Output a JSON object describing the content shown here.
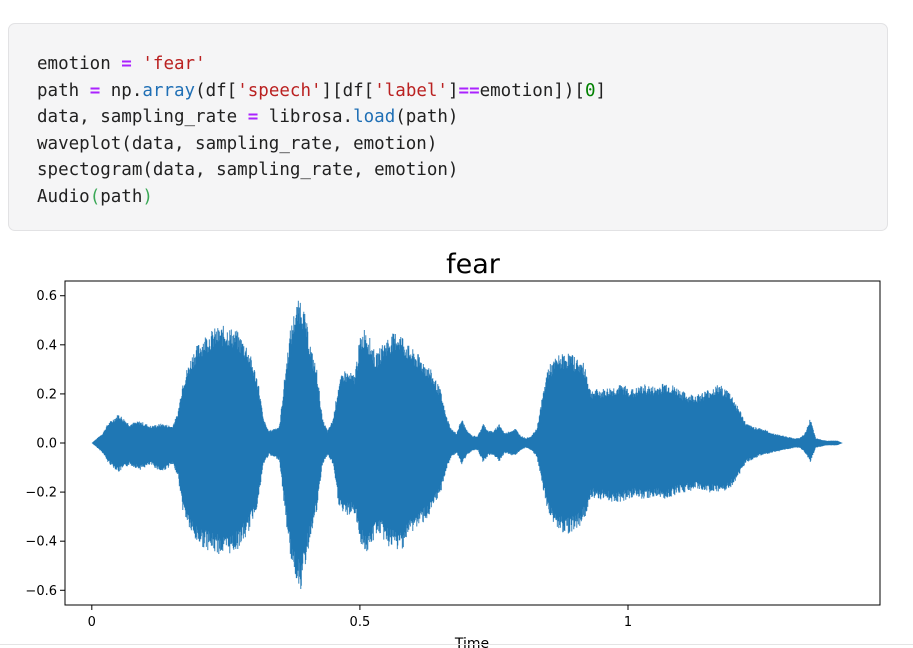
{
  "code_cell": {
    "lines": [
      [
        {
          "t": "emotion ",
          "c": ""
        },
        {
          "t": "=",
          "c": "tok-op"
        },
        {
          "t": " ",
          "c": ""
        },
        {
          "t": "'fear'",
          "c": "tok-str"
        }
      ],
      [
        {
          "t": "path ",
          "c": ""
        },
        {
          "t": "=",
          "c": "tok-op"
        },
        {
          "t": " np.",
          "c": ""
        },
        {
          "t": "array",
          "c": "tok-fn"
        },
        {
          "t": "(df[",
          "c": ""
        },
        {
          "t": "'speech'",
          "c": "tok-str"
        },
        {
          "t": "][df[",
          "c": ""
        },
        {
          "t": "'label'",
          "c": "tok-str"
        },
        {
          "t": "]",
          "c": ""
        },
        {
          "t": "==",
          "c": "tok-op"
        },
        {
          "t": "emotion])[",
          "c": ""
        },
        {
          "t": "0",
          "c": "tok-num"
        },
        {
          "t": "]",
          "c": ""
        }
      ],
      [
        {
          "t": "data, sampling_rate ",
          "c": ""
        },
        {
          "t": "=",
          "c": "tok-op"
        },
        {
          "t": " librosa.",
          "c": ""
        },
        {
          "t": "load",
          "c": "tok-fn"
        },
        {
          "t": "(path)",
          "c": ""
        }
      ],
      [
        {
          "t": "waveplot(data, sampling_rate, emotion)",
          "c": ""
        }
      ],
      [
        {
          "t": "spectogram(data, sampling_rate, emotion)",
          "c": ""
        }
      ],
      [
        {
          "t": "Audio",
          "c": ""
        },
        {
          "t": "(",
          "c": "tok-par"
        },
        {
          "t": "path",
          "c": ""
        },
        {
          "t": ")",
          "c": "tok-par"
        }
      ]
    ]
  },
  "chart_data": {
    "type": "line",
    "title": "fear",
    "xlabel": "Time",
    "ylabel": "",
    "xlim": [
      -0.05,
      1.47
    ],
    "ylim": [
      -0.66,
      0.66
    ],
    "x_ticks": [
      0,
      0.5,
      1
    ],
    "x_tick_labels": [
      "0",
      "0.5",
      "1"
    ],
    "y_ticks": [
      -0.6,
      -0.4,
      -0.2,
      0.0,
      0.2,
      0.4,
      0.6
    ],
    "y_tick_labels": [
      "−0.6",
      "−0.4",
      "−0.2",
      "0.0",
      "0.2",
      "0.4",
      "0.6"
    ],
    "grid": false,
    "series": [
      {
        "color": "#1f77b4",
        "envelope": {
          "time": [
            0.0,
            0.02,
            0.03,
            0.05,
            0.07,
            0.09,
            0.11,
            0.13,
            0.15,
            0.16,
            0.17,
            0.19,
            0.21,
            0.23,
            0.25,
            0.27,
            0.29,
            0.31,
            0.32,
            0.33,
            0.35,
            0.36,
            0.37,
            0.38,
            0.39,
            0.4,
            0.41,
            0.42,
            0.43,
            0.44,
            0.45,
            0.46,
            0.47,
            0.49,
            0.5,
            0.51,
            0.52,
            0.53,
            0.54,
            0.55,
            0.57,
            0.58,
            0.59,
            0.61,
            0.63,
            0.65,
            0.66,
            0.67,
            0.68,
            0.69,
            0.7,
            0.71,
            0.72,
            0.73,
            0.74,
            0.75,
            0.76,
            0.77,
            0.78,
            0.79,
            0.8,
            0.81,
            0.82,
            0.83,
            0.85,
            0.87,
            0.89,
            0.91,
            0.92,
            0.93,
            0.95,
            0.97,
            0.99,
            1.01,
            1.03,
            1.05,
            1.07,
            1.09,
            1.11,
            1.13,
            1.15,
            1.17,
            1.19,
            1.21,
            1.22,
            1.23,
            1.25,
            1.27,
            1.29,
            1.31,
            1.32,
            1.33,
            1.34,
            1.35,
            1.37,
            1.39,
            1.4
          ],
          "upper": [
            0.0,
            0.04,
            0.08,
            0.12,
            0.08,
            0.09,
            0.07,
            0.08,
            0.07,
            0.12,
            0.26,
            0.38,
            0.44,
            0.47,
            0.48,
            0.46,
            0.4,
            0.26,
            0.1,
            0.05,
            0.07,
            0.28,
            0.46,
            0.56,
            0.6,
            0.5,
            0.38,
            0.3,
            0.1,
            0.05,
            0.1,
            0.24,
            0.3,
            0.28,
            0.43,
            0.48,
            0.42,
            0.36,
            0.4,
            0.43,
            0.46,
            0.44,
            0.4,
            0.36,
            0.31,
            0.22,
            0.12,
            0.06,
            0.04,
            0.1,
            0.05,
            0.03,
            0.03,
            0.08,
            0.05,
            0.05,
            0.08,
            0.04,
            0.05,
            0.06,
            0.03,
            0.02,
            0.03,
            0.06,
            0.31,
            0.36,
            0.37,
            0.34,
            0.32,
            0.22,
            0.22,
            0.23,
            0.24,
            0.22,
            0.24,
            0.23,
            0.25,
            0.23,
            0.2,
            0.2,
            0.22,
            0.24,
            0.21,
            0.13,
            0.08,
            0.07,
            0.06,
            0.04,
            0.03,
            0.02,
            0.02,
            0.04,
            0.1,
            0.02,
            0.01,
            0.01,
            0.0
          ],
          "lower": [
            0.0,
            -0.04,
            -0.08,
            -0.12,
            -0.09,
            -0.11,
            -0.09,
            -0.12,
            -0.09,
            -0.13,
            -0.28,
            -0.4,
            -0.43,
            -0.45,
            -0.46,
            -0.44,
            -0.38,
            -0.25,
            -0.09,
            -0.05,
            -0.07,
            -0.28,
            -0.46,
            -0.55,
            -0.6,
            -0.48,
            -0.36,
            -0.28,
            -0.09,
            -0.05,
            -0.09,
            -0.25,
            -0.3,
            -0.29,
            -0.4,
            -0.45,
            -0.44,
            -0.37,
            -0.38,
            -0.42,
            -0.44,
            -0.43,
            -0.38,
            -0.34,
            -0.3,
            -0.21,
            -0.12,
            -0.06,
            -0.04,
            -0.09,
            -0.05,
            -0.03,
            -0.03,
            -0.08,
            -0.05,
            -0.05,
            -0.08,
            -0.04,
            -0.05,
            -0.05,
            -0.03,
            -0.02,
            -0.03,
            -0.06,
            -0.28,
            -0.36,
            -0.37,
            -0.34,
            -0.31,
            -0.22,
            -0.23,
            -0.24,
            -0.24,
            -0.22,
            -0.23,
            -0.22,
            -0.23,
            -0.21,
            -0.2,
            -0.19,
            -0.2,
            -0.21,
            -0.19,
            -0.12,
            -0.08,
            -0.07,
            -0.05,
            -0.04,
            -0.03,
            -0.02,
            -0.02,
            -0.04,
            -0.08,
            -0.02,
            -0.01,
            -0.01,
            0.0
          ]
        }
      }
    ]
  }
}
